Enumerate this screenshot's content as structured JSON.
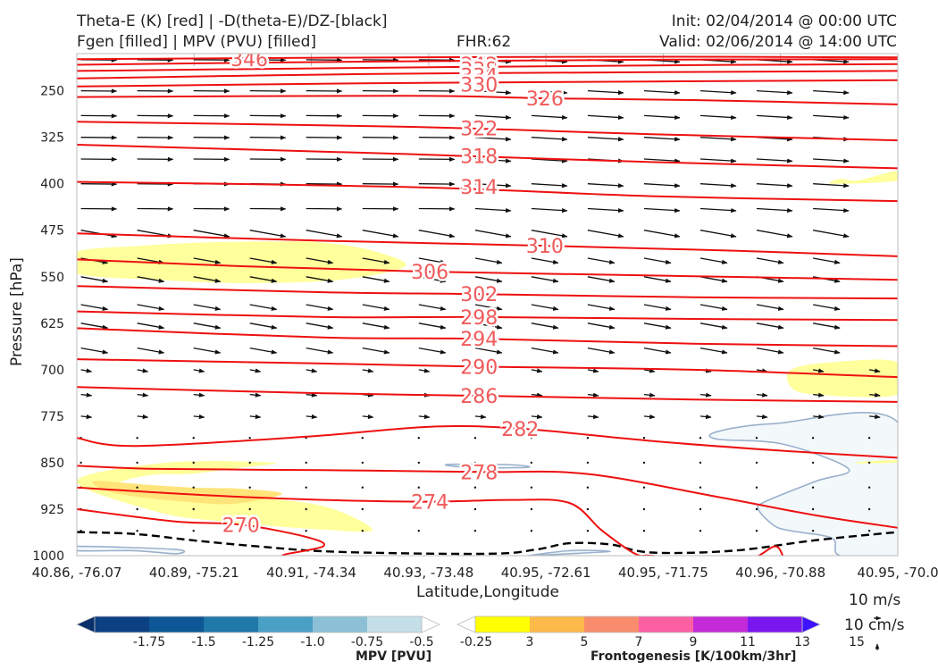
{
  "header": {
    "title_line1": "Theta-E (K) [red] | -D(theta-E)/DZ-[black]",
    "title_line2": "Fgen [filled] | MPV (PVU) [filled]",
    "fhr": "FHR:62",
    "init": "Init: 02/04/2014 @ 00:00 UTC",
    "valid": "Valid: 02/06/2014 @ 14:00 UTC"
  },
  "chart_data": {
    "type": "cross-section",
    "xlabel": "Latitude,Longitude",
    "ylabel": "Pressure [hPa]",
    "x_ticks": [
      "40.86, -76.07",
      "40.89, -75.21",
      "40.91, -74.34",
      "40.93, -73.48",
      "40.95, -72.61",
      "40.95, -71.75",
      "40.96, -70.88",
      "40.95, -70.0"
    ],
    "y_ticks": [
      250,
      325,
      400,
      475,
      550,
      625,
      700,
      775,
      850,
      925,
      1000
    ],
    "ylim": [
      1000,
      190
    ],
    "y_inverted": true,
    "theta_e_contours": [
      {
        "value": 346,
        "x": [
          0,
          0.4,
          0.7,
          1
        ],
        "p": [
          199,
          196,
          195,
          196
        ],
        "label_at": [
          0.21,
          199
        ]
      },
      {
        "value": 342,
        "x": [
          0,
          0.35,
          0.7,
          1
        ],
        "p": [
          208,
          203,
          200,
          199
        ],
        "label_at": [
          0.49,
          207
        ]
      },
      {
        "value": 338,
        "x": [
          0,
          0.35,
          0.7,
          1
        ],
        "p": [
          218,
          213,
          209,
          207
        ],
        "label_at": [
          0.49,
          215
        ]
      },
      {
        "value": 334,
        "x": [
          0,
          0.35,
          0.7,
          1
        ],
        "p": [
          230,
          223,
          220,
          218
        ],
        "label_at": [
          0.49,
          225
        ]
      },
      {
        "value": 330,
        "x": [
          0,
          0.35,
          0.7,
          1
        ],
        "p": [
          243,
          238,
          235,
          233
        ],
        "label_at": [
          0.49,
          240
        ]
      },
      {
        "value": 326,
        "x": [
          0,
          0.4,
          0.57,
          0.75,
          1
        ],
        "p": [
          260,
          258,
          262,
          265,
          272
        ],
        "label_at": [
          0.57,
          262
        ]
      },
      {
        "value": 322,
        "x": [
          0,
          0.4,
          0.7,
          1
        ],
        "p": [
          300,
          308,
          320,
          330
        ],
        "label_at": [
          0.49,
          310
        ]
      },
      {
        "value": 318,
        "x": [
          0,
          0.4,
          0.7,
          1
        ],
        "p": [
          337,
          352,
          365,
          375
        ],
        "label_at": [
          0.49,
          355
        ]
      },
      {
        "value": 314,
        "x": [
          0,
          0.4,
          0.7,
          1
        ],
        "p": [
          397,
          405,
          420,
          428
        ],
        "label_at": [
          0.49,
          405
        ]
      },
      {
        "value": 310,
        "x": [
          0,
          0.3,
          0.57,
          0.8,
          1
        ],
        "p": [
          480,
          492,
          500,
          508,
          517
        ],
        "label_at": [
          0.57,
          500
        ]
      },
      {
        "value": 306,
        "x": [
          0,
          0.2,
          0.43,
          0.7,
          1
        ],
        "p": [
          522,
          533,
          542,
          548,
          555
        ],
        "label_at": [
          0.43,
          542
        ]
      },
      {
        "value": 302,
        "x": [
          0,
          0.3,
          0.49,
          0.75,
          1
        ],
        "p": [
          565,
          575,
          578,
          583,
          585
        ],
        "label_at": [
          0.49,
          578
        ]
      },
      {
        "value": 298,
        "x": [
          0,
          0.3,
          0.49,
          0.75,
          1
        ],
        "p": [
          606,
          615,
          615,
          618,
          620
        ],
        "label_at": [
          0.49,
          615
        ]
      },
      {
        "value": 294,
        "x": [
          0,
          0.3,
          0.49,
          0.75,
          1
        ],
        "p": [
          633,
          648,
          650,
          658,
          662
        ],
        "label_at": [
          0.49,
          650
        ]
      },
      {
        "value": 290,
        "x": [
          0,
          0.3,
          0.49,
          0.75,
          1
        ],
        "p": [
          683,
          690,
          695,
          700,
          712
        ],
        "label_at": [
          0.49,
          695
        ]
      },
      {
        "value": 286,
        "x": [
          0,
          0.3,
          0.49,
          0.75,
          1
        ],
        "p": [
          728,
          738,
          742,
          748,
          752
        ],
        "label_at": [
          0.49,
          742
        ]
      },
      {
        "value": 282,
        "x": [
          0,
          0.07,
          0.28,
          0.43,
          0.54,
          0.7,
          0.85,
          1
        ],
        "p": [
          810,
          823,
          808,
          792,
          795,
          815,
          830,
          842
        ],
        "label_at": [
          0.54,
          795
        ]
      },
      {
        "value": 278,
        "x": [
          0,
          0.1,
          0.3,
          0.49,
          0.62,
          0.78,
          0.9,
          1
        ],
        "p": [
          855,
          860,
          862,
          865,
          868,
          905,
          935,
          955
        ],
        "label_at": [
          0.49,
          865
        ]
      },
      {
        "value": 274,
        "x": [
          0,
          0.15,
          0.3,
          0.43,
          0.53,
          0.6,
          0.64,
          0.68,
          0.7,
          0.76,
          0.82,
          0.85,
          0.86
        ],
        "p": [
          890,
          902,
          910,
          913,
          910,
          915,
          960,
          997,
          1000,
          1008,
          1005,
          985,
          1000
        ],
        "label_at": [
          0.43,
          913
        ]
      },
      {
        "value": 270,
        "x": [
          0,
          0.12,
          0.2,
          0.28,
          0.3,
          0.25,
          0.3
        ],
        "p": [
          925,
          945,
          950,
          970,
          985,
          1000,
          1005
        ],
        "label_at": [
          0.2,
          950
        ]
      }
    ],
    "theta_e_gradient_zero": {
      "x": [
        0,
        0.07,
        0.14,
        0.22,
        0.32,
        0.5,
        0.56,
        0.6,
        0.65,
        0.7,
        0.8,
        0.9,
        1
      ],
      "p": [
        962,
        965,
        975,
        985,
        994,
        997,
        990,
        980,
        982,
        995,
        992,
        975,
        962
      ]
    },
    "mpv_filled": [
      {
        "level": -0.25,
        "x": [
          0.45,
          0.52,
          0.55,
          0.54,
          0.48
        ],
        "p": [
          853,
          853,
          856,
          858,
          858
        ]
      },
      {
        "level": -0.25,
        "x": [
          0.78,
          0.85,
          1,
          1,
          0.93,
          0.92,
          0.87,
          0.85,
          0.83,
          0.84,
          0.9,
          0.94,
          0.86,
          0.78
        ],
        "p": [
          800,
          787,
          785,
          1000,
          1000,
          972,
          960,
          952,
          925,
          912,
          880,
          860,
          820,
          812
        ]
      },
      {
        "level": -0.25,
        "x": [
          0,
          0.12,
          0.12,
          0.07,
          0
        ],
        "p": [
          985,
          990,
          997,
          992,
          992
        ]
      },
      {
        "level": -0.25,
        "x": [
          0.55,
          0.6,
          0.65,
          0.6,
          0.55
        ],
        "p": [
          1000,
          992,
          993,
          997,
          1000
        ]
      }
    ],
    "fgen_filled": [
      {
        "level": 3,
        "x": [
          0,
          0.08,
          0.15,
          0.24,
          0.3,
          0.36,
          0.4,
          0.32,
          0.2,
          0.1,
          0
        ],
        "p": [
          510,
          500,
          495,
          493,
          495,
          508,
          533,
          555,
          560,
          555,
          545
        ]
      },
      {
        "level": 3,
        "x": [
          0.95,
          0.98,
          1,
          1,
          0.92,
          0.93
        ],
        "p": [
          395,
          385,
          380,
          395,
          400,
          392
        ]
      },
      {
        "level": 3,
        "x": [
          0.87,
          0.92,
          1,
          1,
          0.9,
          0.87
        ],
        "p": [
          700,
          688,
          688,
          740,
          740,
          728
        ]
      },
      {
        "level": 3,
        "x": [
          0.11,
          0.24,
          0.2,
          0.14,
          0.09,
          0.05,
          0.1,
          0.2,
          0.3,
          0.36,
          0.3,
          0.18,
          0.1,
          0
        ],
        "p": [
          850,
          850,
          858,
          868,
          870,
          885,
          900,
          905,
          920,
          958,
          958,
          945,
          930,
          880
        ]
      },
      {
        "level": 3,
        "x": [
          0.96,
          1,
          1,
          0.95
        ],
        "p": [
          848,
          846,
          850,
          851
        ]
      },
      {
        "level": 5,
        "x": [
          0.02,
          0.08,
          0.14,
          0.2,
          0.25,
          0.2,
          0.15,
          0.05
        ],
        "p": [
          880,
          885,
          890,
          892,
          900,
          915,
          915,
          900
        ]
      }
    ],
    "colorbars": {
      "mpv": {
        "title": "MPV [PVU]",
        "ticks": [
          "-1.75",
          "-1.5",
          "-1.25",
          "-1.0",
          "-0.75",
          "-0.5",
          "-0.25"
        ],
        "colors": [
          "#08306b",
          "#0b4083",
          "#0d5796",
          "#1f78a8",
          "#4a9fc4",
          "#8cc0d6",
          "#c5dfe8",
          "#ffffff"
        ]
      },
      "fgen": {
        "title": "Frontogenesis [K/100km/3hr]",
        "ticks": [
          "3",
          "5",
          "7",
          "9",
          "11",
          "13",
          "15"
        ],
        "colors": [
          "#ffffff",
          "#ffff00",
          "#fdb94a",
          "#f98c6c",
          "#fc5fa2",
          "#c32bd8",
          "#7a17ee",
          "#3d12ff"
        ]
      }
    },
    "reference_vector": {
      "speed_label": "10 m/s",
      "w_label": "10 cm/s"
    }
  }
}
